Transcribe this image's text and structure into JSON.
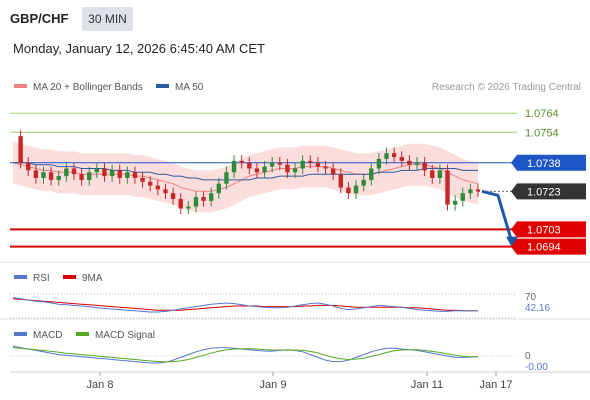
{
  "header": {
    "symbol": "GBP/CHF",
    "timeframe": "30 MIN",
    "datetime": "Monday, January 12, 2026 6:45:40 AM CET"
  },
  "legend": {
    "ma20": "MA 20 + Bollinger Bands",
    "ma50": "MA 50",
    "copyright": "Research © 2026 Trading Central",
    "colors": {
      "ma20": "#f08080",
      "ma50": "#2c5aa0"
    }
  },
  "chart_data": {
    "type": "line",
    "x_ticks": [
      "Jan 8",
      "Jan 9",
      "Jan 11",
      "Jan 17"
    ],
    "ylim": [
      1.0688,
      1.0772
    ],
    "levels": {
      "resistance": [
        {
          "label": "1.0764",
          "value": 1.0764,
          "color": "#9acd6a"
        },
        {
          "label": "1.0754",
          "value": 1.0754,
          "color": "#9acd6a"
        }
      ],
      "support": [
        {
          "label": "1.0703",
          "value": 1.0703,
          "color": "#e00000"
        },
        {
          "label": "1.0694",
          "value": 1.0694,
          "color": "#e00000"
        }
      ],
      "pivot": {
        "label": "1.0738",
        "value": 1.0738,
        "color": "#1e56c8"
      },
      "last": {
        "label": "1.0723",
        "value": 1.0723,
        "color": "#333333"
      }
    },
    "series": [
      {
        "name": "Price",
        "values": [
          1.0752,
          1.0738,
          1.0734,
          1.073,
          1.0733,
          1.0729,
          1.0731,
          1.0735,
          1.0732,
          1.0729,
          1.0733,
          1.0735,
          1.0731,
          1.0734,
          1.073,
          1.0733,
          1.073,
          1.0728,
          1.0726,
          1.0724,
          1.0722,
          1.0719,
          1.0714,
          1.0715,
          1.072,
          1.0718,
          1.0722,
          1.0727,
          1.0733,
          1.0739,
          1.0738,
          1.0735,
          1.0733,
          1.0736,
          1.0738,
          1.0737,
          1.0733,
          1.0735,
          1.0739,
          1.0738,
          1.0736,
          1.0735,
          1.0732,
          1.0725,
          1.0722,
          1.0726,
          1.0729,
          1.0735,
          1.074,
          1.0743,
          1.0741,
          1.0739,
          1.0737,
          1.0738,
          1.0734,
          1.073,
          1.0734,
          1.0716,
          1.0718,
          1.0722,
          1.0724,
          1.0723
        ]
      },
      {
        "name": "MA 20",
        "values": [
          1.0738,
          1.0737,
          1.0736,
          1.0735,
          1.0734,
          1.0734,
          1.0733,
          1.0733,
          1.0733,
          1.0732,
          1.0732,
          1.0732,
          1.0732,
          1.0732,
          1.0732,
          1.0732,
          1.0731,
          1.0731,
          1.073,
          1.0729,
          1.0728,
          1.0727,
          1.0725,
          1.0724,
          1.0723,
          1.0723,
          1.0723,
          1.0724,
          1.0725,
          1.0727,
          1.0729,
          1.0731,
          1.0732,
          1.0733,
          1.0734,
          1.0735,
          1.0735,
          1.0735,
          1.0736,
          1.0736,
          1.0736,
          1.0736,
          1.0735,
          1.0734,
          1.0733,
          1.0732,
          1.0732,
          1.0732,
          1.0733,
          1.0734,
          1.0735,
          1.0736,
          1.0737,
          1.0737,
          1.0737,
          1.0736,
          1.0735,
          1.0733,
          1.0731,
          1.0729,
          1.0728,
          1.0727
        ]
      },
      {
        "name": "MA 50",
        "values": [
          1.0738,
          1.0738,
          1.0738,
          1.0737,
          1.0737,
          1.0737,
          1.0736,
          1.0736,
          1.0736,
          1.0735,
          1.0735,
          1.0735,
          1.0735,
          1.0734,
          1.0734,
          1.0734,
          1.0733,
          1.0733,
          1.0733,
          1.0732,
          1.0732,
          1.0731,
          1.0731,
          1.073,
          1.073,
          1.0729,
          1.0729,
          1.0729,
          1.0729,
          1.0729,
          1.0729,
          1.0729,
          1.073,
          1.073,
          1.073,
          1.0731,
          1.0731,
          1.0731,
          1.0731,
          1.0732,
          1.0732,
          1.0732,
          1.0732,
          1.0732,
          1.0732,
          1.0732,
          1.0732,
          1.0732,
          1.0733,
          1.0733,
          1.0733,
          1.0734,
          1.0734,
          1.0734,
          1.0735,
          1.0735,
          1.0735,
          1.0735,
          1.0735,
          1.0734,
          1.0734,
          1.0734
        ]
      }
    ],
    "bollinger_width": 0.0011,
    "forecast": {
      "from": 1.0723,
      "to": 1.0694,
      "color": "#1e56a8"
    }
  },
  "rsi": {
    "label": "RSI",
    "ma_label": "9MA",
    "colors": {
      "rsi": "#5577cc",
      "ma": "#dd0000"
    },
    "level_label": "70",
    "current_label": "42.16",
    "ylim": [
      30,
      80
    ],
    "values": [
      64,
      62,
      60,
      58,
      57,
      55,
      53,
      52,
      51,
      50,
      49,
      47,
      46,
      45,
      44,
      43,
      42,
      41,
      40,
      40,
      41,
      43,
      45,
      47,
      49,
      51,
      53,
      54,
      55,
      54,
      52,
      50,
      49,
      48,
      47,
      47,
      48,
      50,
      52,
      54,
      55,
      53,
      50,
      46,
      44,
      45,
      47,
      49,
      51,
      50,
      49,
      48,
      46,
      44,
      43,
      42,
      41,
      41,
      42,
      42,
      42,
      42
    ],
    "ma_values": [
      62,
      61,
      60,
      59,
      58,
      57,
      56,
      55,
      54,
      53,
      52,
      51,
      50,
      49,
      48,
      47,
      46,
      45,
      44,
      43,
      43,
      43,
      43,
      44,
      45,
      46,
      47,
      48,
      49,
      50,
      50,
      50,
      50,
      49,
      49,
      49,
      49,
      49,
      50,
      50,
      51,
      51,
      51,
      50,
      49,
      48,
      48,
      48,
      48,
      48,
      48,
      48,
      47,
      47,
      46,
      45,
      44,
      43,
      43,
      42,
      42,
      42
    ]
  },
  "macd": {
    "label": "MACD",
    "signal_label": "MACD Signal",
    "colors": {
      "macd": "#5577cc",
      "signal": "#55aa22"
    },
    "zero_label": "0",
    "current_label": "-0.00",
    "ylim": [
      -1,
      1
    ],
    "values": [
      0.7,
      0.6,
      0.5,
      0.4,
      0.3,
      0.2,
      0.1,
      0.05,
      0.0,
      -0.05,
      -0.1,
      -0.15,
      -0.2,
      -0.25,
      -0.3,
      -0.35,
      -0.4,
      -0.45,
      -0.5,
      -0.5,
      -0.45,
      -0.3,
      -0.1,
      0.1,
      0.3,
      0.45,
      0.55,
      0.6,
      0.6,
      0.55,
      0.5,
      0.45,
      0.4,
      0.35,
      0.35,
      0.4,
      0.45,
      0.4,
      0.3,
      0.1,
      -0.1,
      -0.3,
      -0.4,
      -0.4,
      -0.3,
      -0.1,
      0.1,
      0.3,
      0.45,
      0.55,
      0.55,
      0.5,
      0.45,
      0.4,
      0.3,
      0.2,
      0.1,
      0.0,
      -0.1,
      -0.1,
      -0.08,
      -0.05
    ],
    "signal_values": [
      0.6,
      0.55,
      0.5,
      0.45,
      0.4,
      0.33,
      0.27,
      0.2,
      0.15,
      0.1,
      0.05,
      0.0,
      -0.05,
      -0.1,
      -0.15,
      -0.2,
      -0.25,
      -0.3,
      -0.35,
      -0.4,
      -0.42,
      -0.4,
      -0.35,
      -0.25,
      -0.1,
      0.05,
      0.2,
      0.35,
      0.45,
      0.5,
      0.52,
      0.52,
      0.5,
      0.46,
      0.43,
      0.42,
      0.42,
      0.42,
      0.4,
      0.33,
      0.22,
      0.05,
      -0.1,
      -0.2,
      -0.25,
      -0.22,
      -0.15,
      -0.03,
      0.1,
      0.25,
      0.37,
      0.43,
      0.45,
      0.44,
      0.4,
      0.33,
      0.25,
      0.15,
      0.05,
      -0.02,
      -0.05,
      -0.05
    ]
  }
}
